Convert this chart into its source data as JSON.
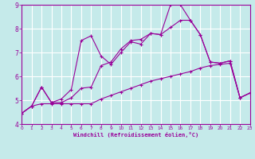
{
  "xlabel": "Windchill (Refroidissement éolien,°C)",
  "background_color": "#c5eaea",
  "grid_color": "#ffffff",
  "line_color": "#990099",
  "xlim": [
    0,
    23
  ],
  "ylim": [
    4,
    9
  ],
  "yticks": [
    4,
    5,
    6,
    7,
    8,
    9
  ],
  "xticks": [
    0,
    1,
    2,
    3,
    4,
    5,
    6,
    7,
    8,
    9,
    10,
    11,
    12,
    13,
    14,
    15,
    16,
    17,
    18,
    19,
    20,
    21,
    22,
    23
  ],
  "curve1_x": [
    0,
    1,
    2,
    3,
    4,
    5,
    6,
    7,
    8,
    9,
    10,
    11,
    12,
    13,
    14,
    15,
    16,
    17,
    18,
    19,
    20,
    21,
    22,
    23
  ],
  "curve1_y": [
    4.45,
    4.75,
    5.55,
    4.9,
    5.05,
    5.45,
    7.5,
    7.7,
    6.85,
    6.5,
    7.0,
    7.45,
    7.35,
    7.8,
    7.75,
    9.0,
    9.0,
    8.35,
    7.75,
    6.6,
    6.55,
    6.65,
    5.1,
    5.3
  ],
  "curve2_x": [
    0,
    1,
    2,
    3,
    4,
    5,
    6,
    7,
    8,
    9,
    10,
    11,
    12,
    13,
    14,
    15,
    16,
    17,
    18,
    19,
    20,
    21,
    22,
    23
  ],
  "curve2_y": [
    4.45,
    4.75,
    5.55,
    4.9,
    4.9,
    5.1,
    5.5,
    5.55,
    6.45,
    6.6,
    7.15,
    7.5,
    7.55,
    7.8,
    7.75,
    8.05,
    8.35,
    8.35,
    7.75,
    6.6,
    6.55,
    6.65,
    5.1,
    5.3
  ],
  "curve3_x": [
    0,
    1,
    2,
    3,
    4,
    5,
    6,
    7,
    8,
    9,
    10,
    11,
    12,
    13,
    14,
    15,
    16,
    17,
    18,
    19,
    20,
    21,
    22,
    23
  ],
  "curve3_y": [
    4.45,
    4.75,
    4.85,
    4.85,
    4.85,
    4.85,
    4.85,
    4.85,
    5.05,
    5.2,
    5.35,
    5.5,
    5.65,
    5.8,
    5.9,
    6.0,
    6.1,
    6.2,
    6.35,
    6.45,
    6.5,
    6.55,
    5.1,
    5.3
  ]
}
